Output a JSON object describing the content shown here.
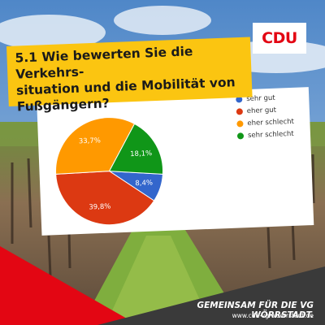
{
  "brand": {
    "logo_text": "CDU",
    "slogan": "GEMEINSAM FÜR DIE VG WÖRRSTADT.",
    "url": "www.cdu-vg-woerrstadt.de"
  },
  "question": {
    "line1": "5.1 Wie bewerten Sie die Verkehrs-",
    "line2": "situation und die Mobilität von",
    "line3": "Fußgängern?"
  },
  "colors": {
    "brand_red": "#e30613",
    "title_yellow": "#fbc511",
    "footer_dark": "#3a3a3a"
  },
  "chart_data": {
    "type": "pie",
    "title": "5.1 Wie bewerten Sie die Verkehrssituation und die Mobilität von Fußgängern?",
    "categories": [
      "sehr gut",
      "eher gut",
      "eher schlecht",
      "sehr schlecht"
    ],
    "values": [
      8.4,
      39.8,
      33.7,
      18.1
    ],
    "labels": [
      "8,4%",
      "39,8%",
      "33,7%",
      "18,1%"
    ],
    "colors": [
      "#3366cc",
      "#dc3912",
      "#ff9900",
      "#109618"
    ],
    "legend_position": "right"
  }
}
